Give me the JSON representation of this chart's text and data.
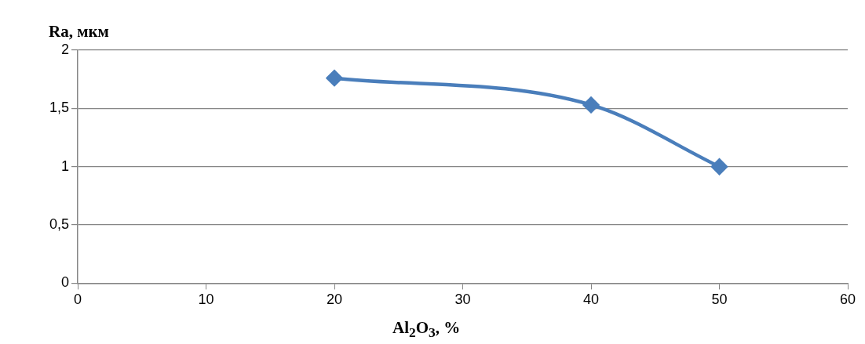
{
  "chart_data": {
    "type": "line",
    "xlabel": "Al$_{2}$O$_{3}$, %",
    "ylabel": "Ra, мкм",
    "x": [
      20,
      40,
      50
    ],
    "series": [
      {
        "color": "#4a7ebb",
        "values": [
          1.76,
          1.53,
          1.0
        ]
      }
    ],
    "xlim": [
      0,
      60
    ],
    "xticks": [
      0,
      10,
      20,
      30,
      40,
      50,
      60
    ],
    "ylim": [
      0,
      2
    ],
    "yticks": [
      {
        "value": 0,
        "label": "0"
      },
      {
        "value": 0.5,
        "label": "0,5"
      },
      {
        "value": 1,
        "label": "1"
      },
      {
        "value": 1.5,
        "label": "1,5"
      },
      {
        "value": 2,
        "label": "2"
      }
    ],
    "grid": "y",
    "legend": false,
    "marker": "diamond",
    "line_style": "solid"
  }
}
